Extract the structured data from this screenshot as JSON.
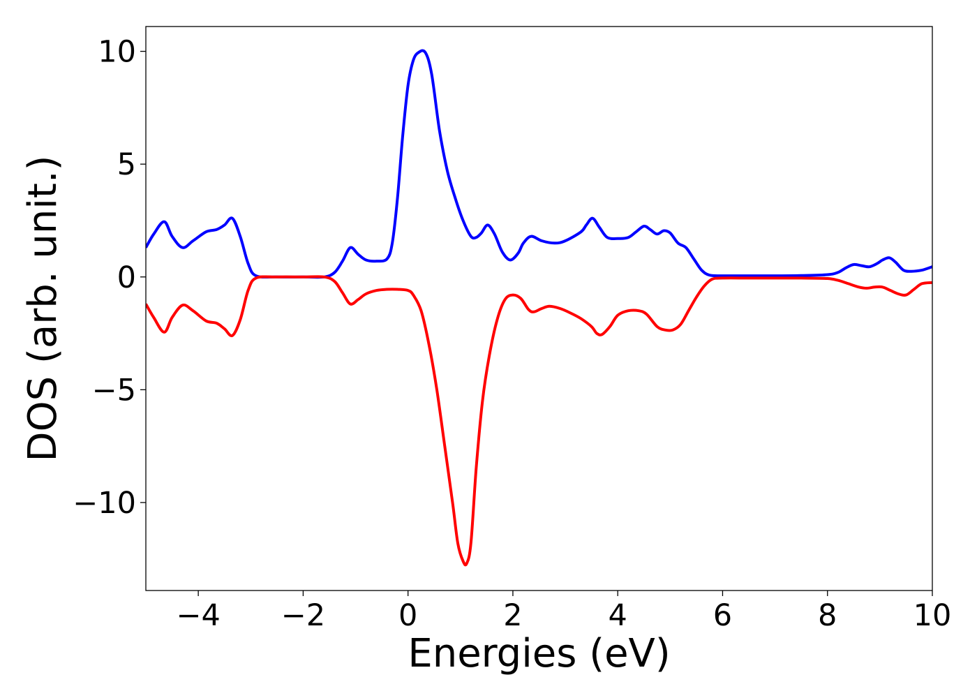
{
  "chart_data": {
    "type": "line",
    "title": "",
    "xlabel": "Energies (eV)",
    "ylabel": "DOS (arb. unit.)",
    "xlim": [
      -5,
      10
    ],
    "ylim": [
      -13.9,
      11.1
    ],
    "xticks": [
      -4,
      -2,
      0,
      2,
      4,
      6,
      8,
      10
    ],
    "xtick_labels": [
      "−4",
      "−2",
      "0",
      "2",
      "4",
      "6",
      "8",
      "10"
    ],
    "yticks": [
      10,
      5,
      0,
      -5,
      -10
    ],
    "ytick_labels": [
      "10",
      "5",
      "0",
      "−5",
      "−10"
    ],
    "grid": false,
    "legend": "none",
    "series": [
      {
        "color": "#0000ff",
        "x": [
          -5.0,
          -4.85,
          -4.65,
          -4.5,
          -4.3,
          -4.1,
          -3.85,
          -3.65,
          -3.5,
          -3.35,
          -3.2,
          -3.05,
          -2.9,
          -2.5,
          -2.0,
          -1.6,
          -1.4,
          -1.25,
          -1.1,
          -0.95,
          -0.8,
          -0.6,
          -0.4,
          -0.3,
          -0.2,
          -0.1,
          0.0,
          0.1,
          0.2,
          0.33,
          0.45,
          0.6,
          0.75,
          0.9,
          1.05,
          1.2,
          1.3,
          1.4,
          1.52,
          1.65,
          1.8,
          1.95,
          2.1,
          2.2,
          2.35,
          2.55,
          2.8,
          3.0,
          3.3,
          3.4,
          3.52,
          3.65,
          3.8,
          4.0,
          4.2,
          4.35,
          4.5,
          4.62,
          4.75,
          4.88,
          5.0,
          5.15,
          5.3,
          5.45,
          5.6,
          5.75,
          6.0,
          6.5,
          7.0,
          7.5,
          8.0,
          8.2,
          8.35,
          8.5,
          8.65,
          8.8,
          8.95,
          9.05,
          9.18,
          9.3,
          9.45,
          9.6,
          9.8,
          10.0
        ],
        "y": [
          1.3,
          1.9,
          2.45,
          1.8,
          1.3,
          1.6,
          2.0,
          2.1,
          2.3,
          2.6,
          1.8,
          0.6,
          0.05,
          0.0,
          0.0,
          0.0,
          0.2,
          0.7,
          1.3,
          1.0,
          0.75,
          0.7,
          0.8,
          1.5,
          3.5,
          6.3,
          8.5,
          9.6,
          9.95,
          9.95,
          9.0,
          6.5,
          4.7,
          3.5,
          2.5,
          1.8,
          1.75,
          1.95,
          2.3,
          1.9,
          1.1,
          0.75,
          1.05,
          1.5,
          1.8,
          1.6,
          1.5,
          1.6,
          2.0,
          2.3,
          2.6,
          2.2,
          1.75,
          1.7,
          1.75,
          2.0,
          2.25,
          2.1,
          1.9,
          2.05,
          1.95,
          1.5,
          1.3,
          0.8,
          0.3,
          0.08,
          0.05,
          0.05,
          0.05,
          0.06,
          0.1,
          0.2,
          0.4,
          0.55,
          0.5,
          0.45,
          0.6,
          0.75,
          0.85,
          0.65,
          0.3,
          0.25,
          0.3,
          0.45
        ]
      },
      {
        "color": "#ff0000",
        "x": [
          -5.0,
          -4.85,
          -4.65,
          -4.5,
          -4.3,
          -4.1,
          -3.85,
          -3.65,
          -3.5,
          -3.35,
          -3.2,
          -3.05,
          -2.9,
          -2.5,
          -2.0,
          -1.6,
          -1.4,
          -1.25,
          -1.1,
          -0.95,
          -0.8,
          -0.6,
          -0.4,
          -0.2,
          0.0,
          0.1,
          0.25,
          0.4,
          0.55,
          0.7,
          0.85,
          0.95,
          1.05,
          1.12,
          1.2,
          1.3,
          1.42,
          1.55,
          1.7,
          1.85,
          2.0,
          2.15,
          2.3,
          2.4,
          2.55,
          2.7,
          2.9,
          3.1,
          3.3,
          3.5,
          3.6,
          3.7,
          3.85,
          4.0,
          4.2,
          4.4,
          4.55,
          4.75,
          4.9,
          5.05,
          5.2,
          5.35,
          5.5,
          5.65,
          5.8,
          6.0,
          6.5,
          7.0,
          7.5,
          8.0,
          8.2,
          8.4,
          8.6,
          8.75,
          8.9,
          9.05,
          9.2,
          9.35,
          9.5,
          9.65,
          9.8,
          10.0
        ],
        "y": [
          -1.2,
          -1.8,
          -2.45,
          -1.8,
          -1.25,
          -1.5,
          -1.95,
          -2.05,
          -2.3,
          -2.6,
          -1.9,
          -0.6,
          -0.05,
          0.0,
          0.0,
          0.0,
          -0.2,
          -0.7,
          -1.2,
          -1.0,
          -0.75,
          -0.6,
          -0.55,
          -0.55,
          -0.6,
          -0.8,
          -1.5,
          -3.0,
          -5.0,
          -7.5,
          -10.0,
          -11.8,
          -12.6,
          -12.7,
          -11.8,
          -8.5,
          -5.5,
          -3.5,
          -1.9,
          -1.0,
          -0.8,
          -0.95,
          -1.45,
          -1.55,
          -1.4,
          -1.3,
          -1.4,
          -1.6,
          -1.85,
          -2.2,
          -2.5,
          -2.55,
          -2.2,
          -1.7,
          -1.5,
          -1.5,
          -1.65,
          -2.2,
          -2.35,
          -2.35,
          -2.1,
          -1.5,
          -0.9,
          -0.4,
          -0.1,
          -0.05,
          -0.05,
          -0.05,
          -0.05,
          -0.07,
          -0.15,
          -0.3,
          -0.45,
          -0.5,
          -0.45,
          -0.45,
          -0.6,
          -0.75,
          -0.8,
          -0.55,
          -0.3,
          -0.25
        ]
      }
    ]
  }
}
